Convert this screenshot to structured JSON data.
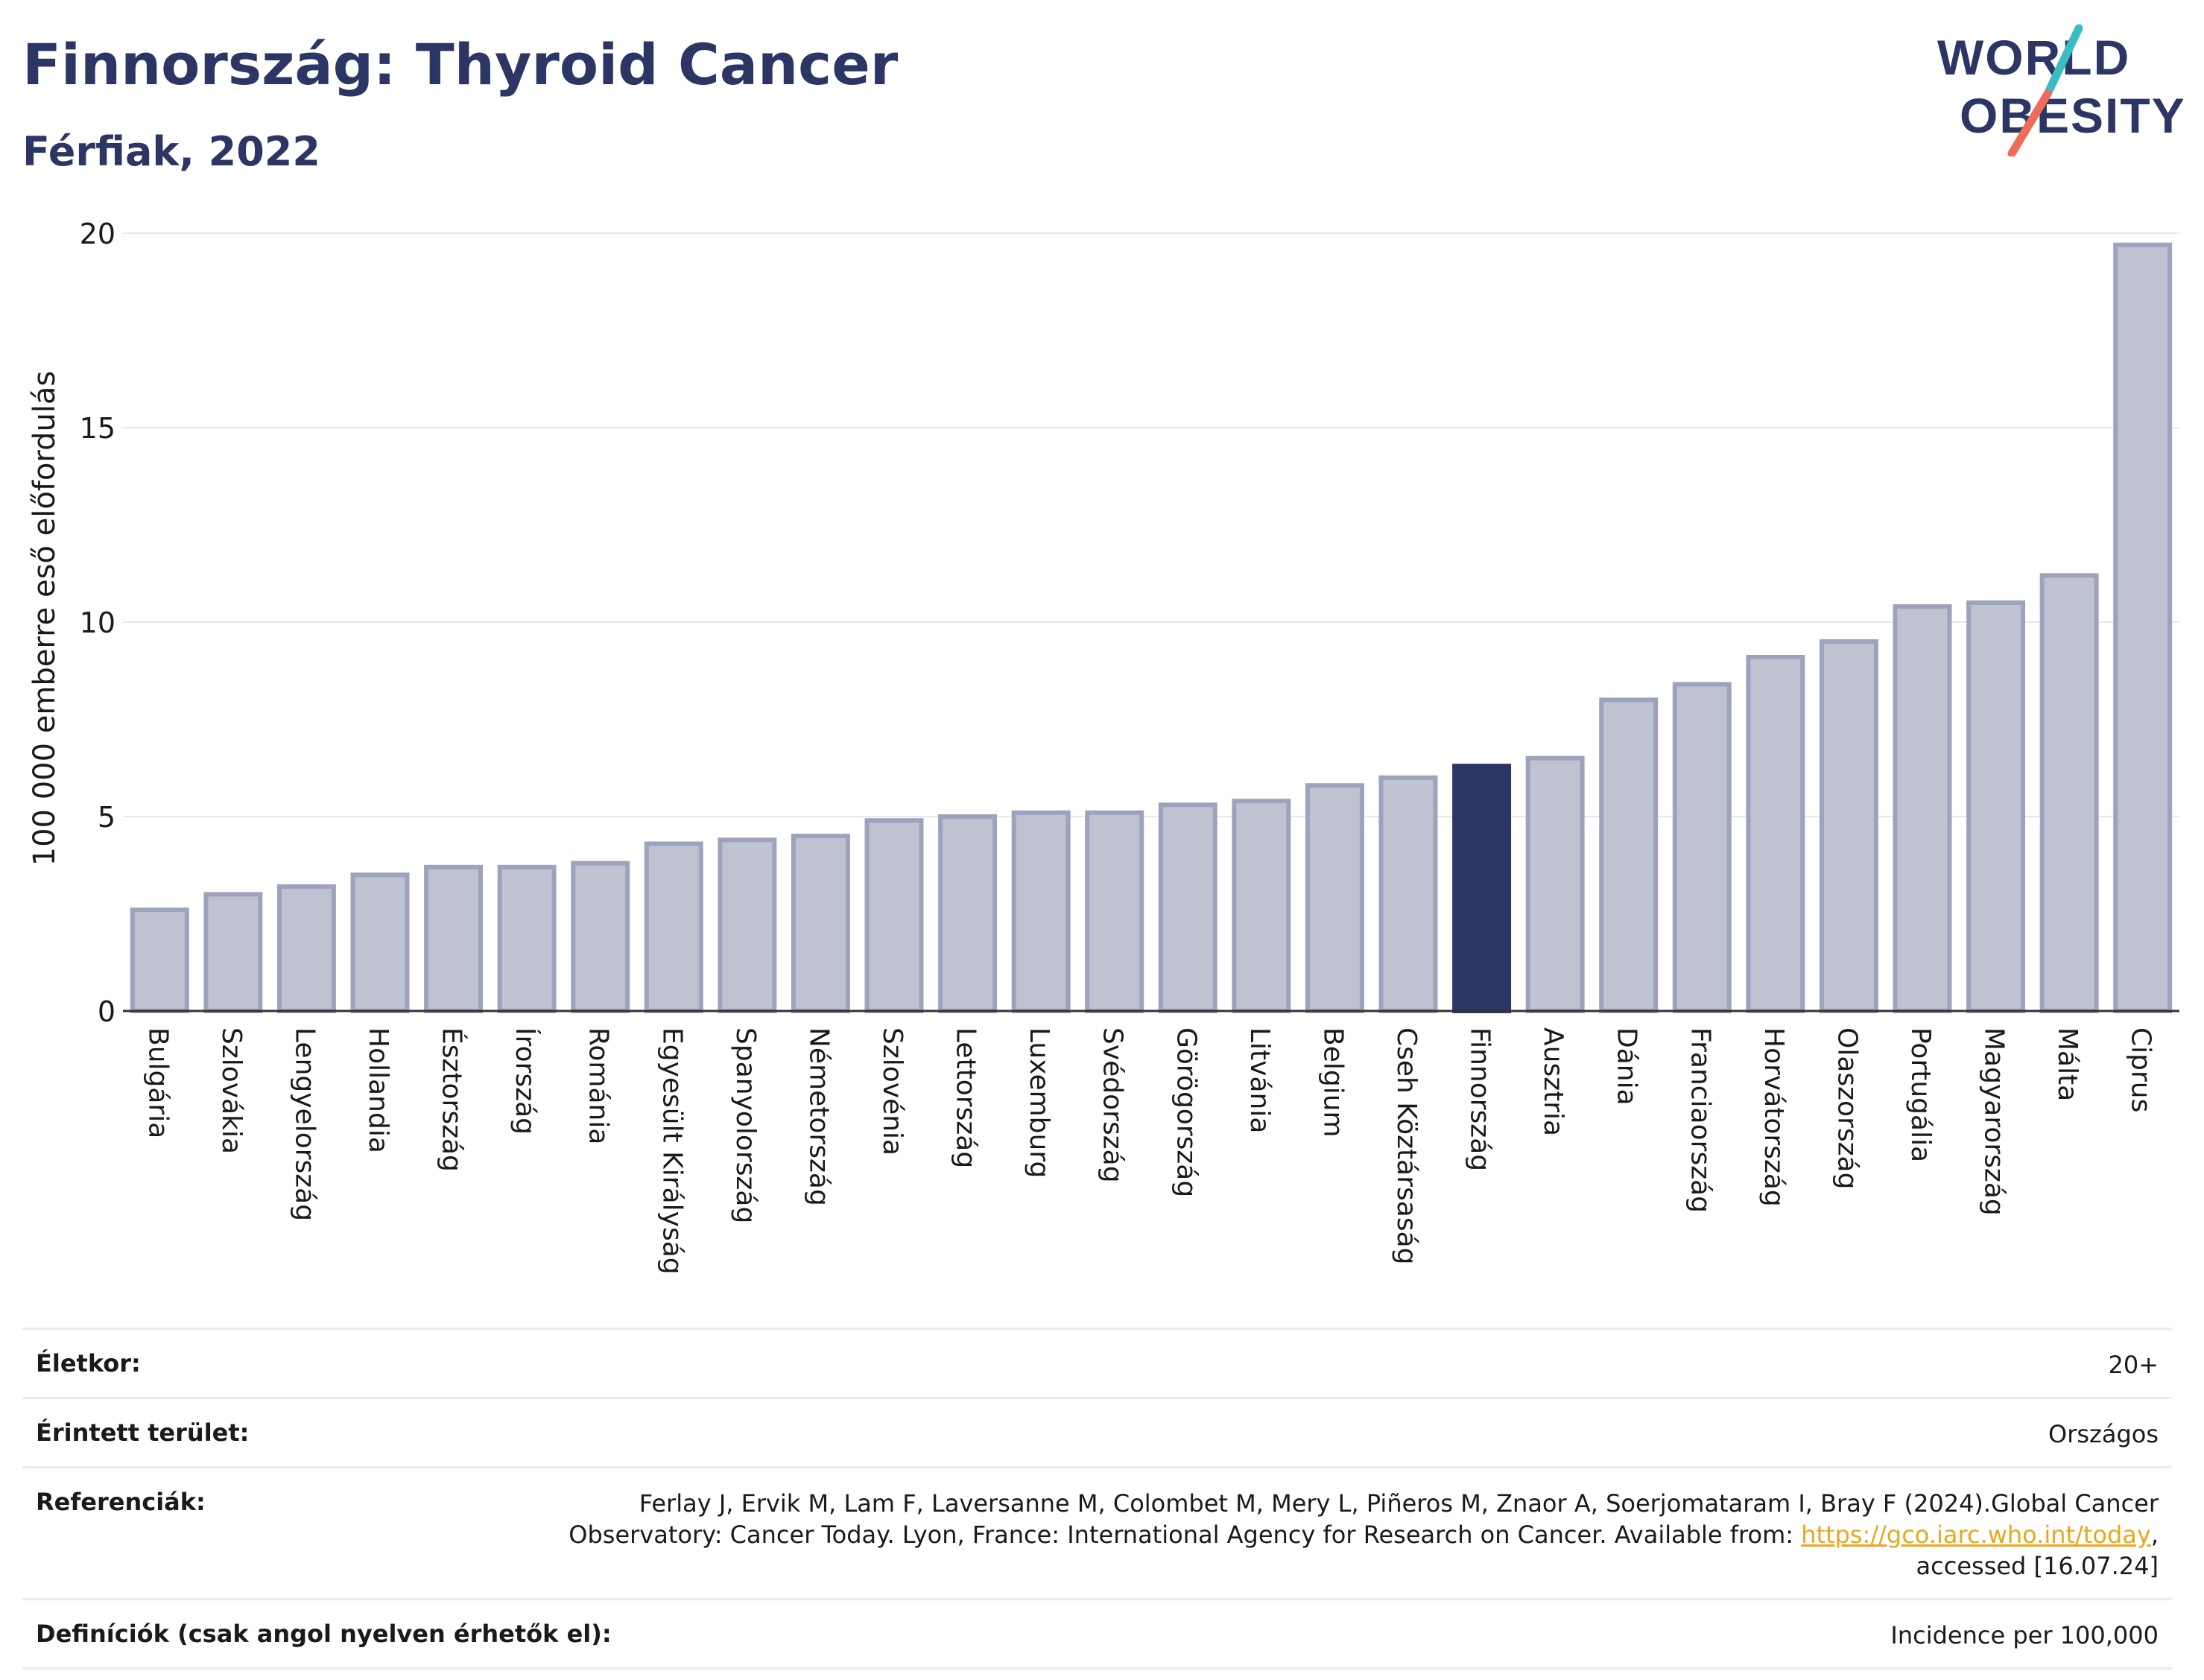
{
  "header": {
    "title": "Finnország: Thyroid Cancer",
    "subtitle": "Férfiak, 2022"
  },
  "logo": {
    "line1": "WORLD",
    "line2": "OBESITY"
  },
  "colors": {
    "bar": "#bfc3d1",
    "bar_border": "#9da2bd",
    "highlight": "#2b3664",
    "title": "#2b3664",
    "logo_slash_top": "#3bbcc0",
    "logo_slash_bottom": "#ef6c5a",
    "link": "#e8a81c"
  },
  "chart_data": {
    "type": "bar",
    "ylabel": "100 000 emberre eső előfordulás",
    "ylim": [
      0,
      20
    ],
    "yticks": [
      0,
      5,
      10,
      15,
      20
    ],
    "grid": true,
    "highlight": "Finnország",
    "categories": [
      "Bulgária",
      "Szlovákia",
      "Lengyelország",
      "Hollandia",
      "Észtország",
      "Írország",
      "Románia",
      "Egyesült Királyság",
      "Spanyolország",
      "Németország",
      "Szlovénia",
      "Lettország",
      "Luxemburg",
      "Svédország",
      "Görögország",
      "Litvánia",
      "Belgium",
      "Cseh Köztársaság",
      "Finnország",
      "Ausztria",
      "Dánia",
      "Franciaország",
      "Horvátország",
      "Olaszország",
      "Portugália",
      "Magyarország",
      "Málta",
      "Ciprus"
    ],
    "values": [
      2.6,
      3.0,
      3.2,
      3.5,
      3.7,
      3.7,
      3.8,
      4.3,
      4.4,
      4.5,
      4.9,
      5.0,
      5.1,
      5.1,
      5.3,
      5.4,
      5.8,
      6.0,
      6.3,
      6.5,
      8.0,
      8.4,
      9.1,
      9.5,
      10.4,
      10.5,
      11.2,
      19.7
    ]
  },
  "info": {
    "age_label": "Életkor:",
    "age_value": "20+",
    "area_label": "Érintett terület:",
    "area_value": "Országos",
    "ref_label": "Referenciák:",
    "ref_text_before": "Ferlay J, Ervik M, Lam F, Laversanne M, Colombet M, Mery L, Piñeros M, Znaor A, Soerjomataram I, Bray F (2024).Global Cancer Observatory: Cancer Today. Lyon, France: International Agency for Research on Cancer. Available from: ",
    "ref_link": "https://gco.iarc.who.int/today",
    "ref_text_after": ", accessed [16.07.24]",
    "def_label": "Definíciók (csak angol nyelven érhetők el):",
    "def_value": "Incidence per 100,000"
  }
}
